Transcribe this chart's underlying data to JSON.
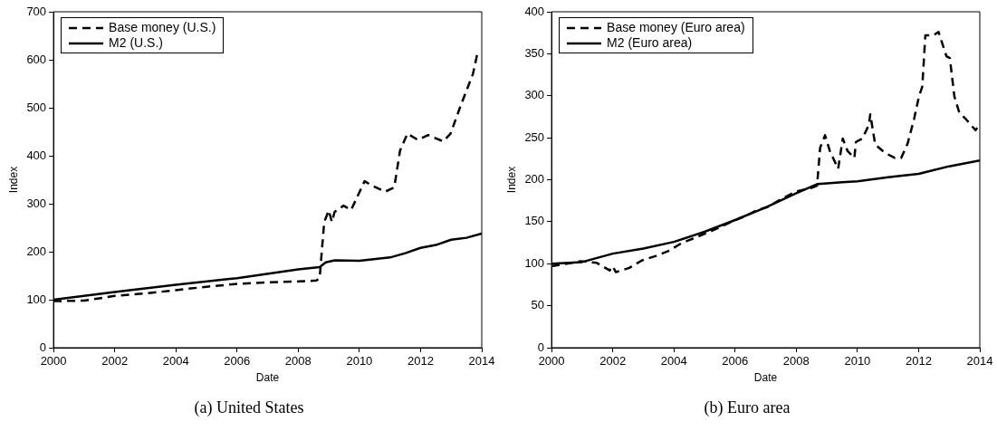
{
  "chart_data": [
    {
      "type": "line",
      "xlabel": "Date",
      "ylabel": "Index",
      "xlim": [
        2000,
        2014
      ],
      "xticks": [
        2000,
        2002,
        2004,
        2006,
        2008,
        2010,
        2012,
        2014
      ],
      "ylim": [
        0,
        700
      ],
      "yticks": [
        0,
        100,
        200,
        300,
        400,
        500,
        600,
        700
      ],
      "grid": false,
      "legend": "top left",
      "marker": "none",
      "annotations": [
        "(a)  United States"
      ],
      "series": [
        {
          "name": "Base money (U.S.)",
          "color": "#000000",
          "line_style": "dashed",
          "x": [
            2000,
            2001,
            2001.5,
            2002,
            2003,
            2004,
            2005,
            2006,
            2007,
            2008,
            2008.6,
            2008.7,
            2008.85,
            2009.0,
            2009.1,
            2009.19,
            2009.48,
            2009.73,
            2010.17,
            2010.41,
            2010.84,
            2011.14,
            2011.33,
            2011.57,
            2011.91,
            2012.25,
            2012.74,
            2012.98,
            2013.32,
            2013.71,
            2013.85
          ],
          "values": [
            97,
            98,
            103,
            108,
            113,
            120,
            127,
            133,
            136,
            138,
            140,
            145,
            262,
            286,
            262,
            283,
            296,
            287,
            347,
            338,
            325,
            334,
            411,
            446,
            433,
            443,
            430,
            446,
            506,
            570,
            611
          ]
        },
        {
          "name": "M2 (U.S.)",
          "color": "#000000",
          "line_style": "solid",
          "x": [
            2000,
            2002,
            2004,
            2006,
            2008,
            2008.7,
            2008.9,
            2009.2,
            2010,
            2011,
            2011.5,
            2012,
            2012.5,
            2013,
            2013.5,
            2014
          ],
          "values": [
            100,
            116,
            131,
            145,
            163,
            168,
            178,
            182,
            181,
            188,
            197,
            208,
            214,
            225,
            229,
            238
          ]
        }
      ]
    },
    {
      "type": "line",
      "xlabel": "Date",
      "ylabel": "Index",
      "xlim": [
        2000,
        2014
      ],
      "xticks": [
        2000,
        2002,
        2004,
        2006,
        2008,
        2010,
        2012,
        2014
      ],
      "ylim": [
        0,
        400
      ],
      "yticks": [
        0,
        50,
        100,
        150,
        200,
        250,
        300,
        350,
        400
      ],
      "grid": false,
      "legend": "top left",
      "marker": "none",
      "annotations": [
        "(b)  Euro area"
      ],
      "series": [
        {
          "name": "Base money (Euro area)",
          "color": "#000000",
          "line_style": "dashed",
          "x": [
            2000,
            2000.5,
            2000.95,
            2001.48,
            2001.9,
            2002.0,
            2002.1,
            2002.54,
            2002.96,
            2003.39,
            2003.81,
            2004.23,
            2004.76,
            2005.29,
            2005.82,
            2006.35,
            2006.67,
            2007.09,
            2007.51,
            2007.99,
            2008.47,
            2008.68,
            2008.78,
            2008.94,
            2009.1,
            2009.37,
            2009.52,
            2009.68,
            2009.9,
            2009.95,
            2010.16,
            2010.37,
            2010.42,
            2010.58,
            2010.9,
            2011.22,
            2011.43,
            2011.64,
            2011.85,
            2012.01,
            2012.12,
            2012.22,
            2012.49,
            2012.65,
            2012.91,
            2013.02,
            2013.17,
            2013.33,
            2013.55,
            2013.86,
            2014
          ],
          "values": [
            97,
            100,
            103,
            101,
            92,
            97,
            90,
            95,
            104,
            109,
            115,
            124,
            132,
            140,
            149,
            157,
            163,
            168,
            177,
            186,
            190,
            193,
            238,
            253,
            234,
            213,
            249,
            234,
            226,
            245,
            249,
            265,
            278,
            242,
            232,
            226,
            226,
            243,
            272,
            299,
            311,
            372,
            372,
            376,
            347,
            345,
            299,
            280,
            272,
            259,
            266
          ]
        },
        {
          "name": "M2 (Euro area)",
          "color": "#000000",
          "line_style": "solid",
          "x": [
            2000,
            2001,
            2002,
            2003,
            2004,
            2005,
            2006,
            2007,
            2008,
            2008.7,
            2009.5,
            2010,
            2011,
            2012,
            2013,
            2014
          ],
          "values": [
            100,
            102,
            112,
            118,
            126,
            138,
            152,
            167,
            184,
            195,
            197,
            198,
            203,
            207,
            216,
            223
          ]
        }
      ]
    }
  ]
}
